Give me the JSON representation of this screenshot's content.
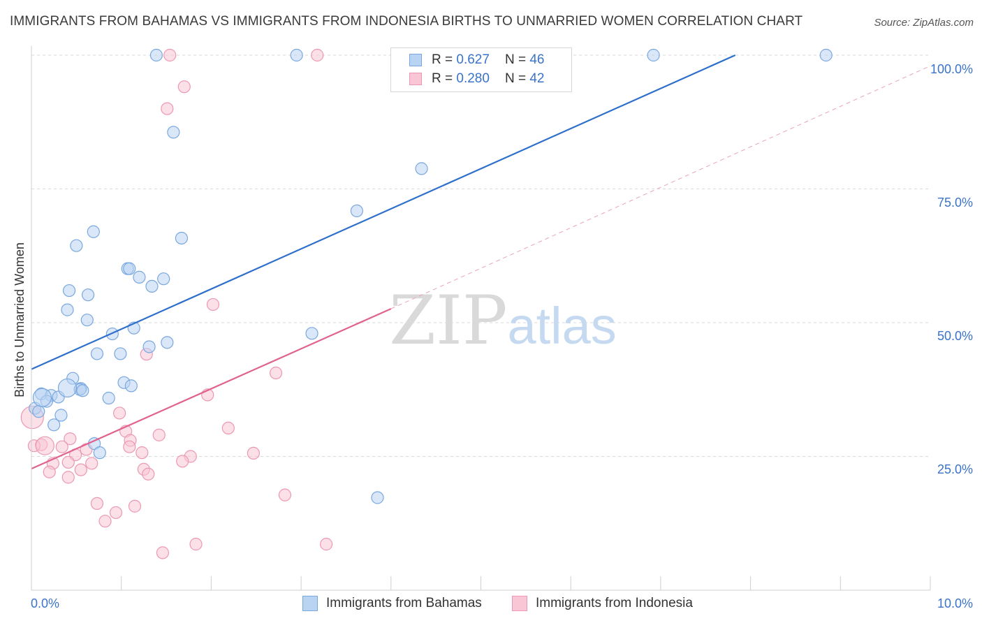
{
  "title": "IMMIGRANTS FROM BAHAMAS VS IMMIGRANTS FROM INDONESIA BIRTHS TO UNMARRIED WOMEN CORRELATION CHART",
  "source": "Source: ZipAtlas.com",
  "legend": {
    "rows": [
      {
        "r_label": "R =",
        "r_value": "0.627",
        "n_label": "N =",
        "n_value": "46"
      },
      {
        "r_label": "R =",
        "r_value": "0.280",
        "n_label": "N =",
        "n_value": "42"
      }
    ]
  },
  "colors": {
    "blue_fill": "#b9d3f2",
    "blue_stroke": "#7aa8de",
    "blue_line": "#2e6fcb",
    "pink_fill": "#f8c6d5",
    "pink_stroke": "#ec98b3",
    "pink_line": "#e0638f",
    "axis_label": "#3a73c9",
    "grid": "#d9d9d9"
  },
  "chart_data": {
    "type": "scatter",
    "title": "IMMIGRANTS FROM BAHAMAS VS IMMIGRANTS FROM INDONESIA BIRTHS TO UNMARRIED WOMEN CORRELATION CHART",
    "xlabel": "",
    "ylabel": "Births to Unmarried Women",
    "xlim": [
      0,
      10
    ],
    "ylim": [
      0,
      100
    ],
    "x_tick_labels": [
      "0.0%",
      "10.0%"
    ],
    "y_tick_labels": [
      "25.0%",
      "50.0%",
      "75.0%",
      "100.0%"
    ],
    "y_ticks": [
      25,
      50,
      75,
      100
    ],
    "legend_position": "top-center",
    "watermark": "ZIPatlas",
    "series": [
      {
        "name": "Immigrants from Bahamas",
        "color": "blue",
        "points": [
          [
            1.39,
            100
          ],
          [
            2.95,
            100
          ],
          [
            6.92,
            100
          ],
          [
            8.84,
            100
          ],
          [
            1.58,
            85.6
          ],
          [
            4.34,
            78.8
          ],
          [
            3.62,
            70.9
          ],
          [
            0.69,
            67.0
          ],
          [
            0.5,
            64.4
          ],
          [
            1.67,
            65.8
          ],
          [
            1.07,
            60.1
          ],
          [
            1.09,
            60.1
          ],
          [
            1.2,
            58.5
          ],
          [
            1.47,
            58.2
          ],
          [
            1.34,
            56.8
          ],
          [
            0.42,
            56.0
          ],
          [
            0.63,
            55.2
          ],
          [
            0.4,
            52.4
          ],
          [
            0.62,
            50.5
          ],
          [
            0.9,
            47.9
          ],
          [
            1.14,
            49.0
          ],
          [
            3.12,
            48.0
          ],
          [
            1.51,
            46.3
          ],
          [
            1.31,
            45.5
          ],
          [
            0.73,
            44.2
          ],
          [
            0.99,
            44.2
          ],
          [
            0.46,
            39.6
          ],
          [
            1.03,
            38.8
          ],
          [
            1.11,
            38.2
          ],
          [
            0.55,
            37.7
          ],
          [
            0.54,
            37.5
          ],
          [
            0.57,
            37.3
          ],
          [
            0.11,
            36.7
          ],
          [
            0.22,
            36.4
          ],
          [
            0.3,
            36.1
          ],
          [
            0.86,
            35.9
          ],
          [
            0.17,
            35.3
          ],
          [
            0.04,
            34.0
          ],
          [
            0.08,
            33.4
          ],
          [
            0.33,
            32.7
          ],
          [
            0.25,
            30.9
          ],
          [
            0.7,
            27.4
          ],
          [
            0.76,
            25.7
          ],
          [
            3.85,
            17.3
          ],
          [
            0.12,
            36.0
          ],
          [
            0.4,
            37.8
          ]
        ],
        "trendline": {
          "x": [
            0.0,
            7.83
          ],
          "y": [
            41.3,
            100.0
          ]
        }
      },
      {
        "name": "Immigrants from Indonesia",
        "color": "pink",
        "points": [
          [
            1.54,
            100
          ],
          [
            3.18,
            100
          ],
          [
            1.7,
            94.1
          ],
          [
            1.51,
            90.0
          ],
          [
            2.02,
            53.4
          ],
          [
            1.28,
            44.1
          ],
          [
            2.72,
            40.6
          ],
          [
            1.96,
            36.5
          ],
          [
            0.98,
            33.1
          ],
          [
            2.19,
            30.3
          ],
          [
            1.05,
            29.7
          ],
          [
            1.42,
            29.0
          ],
          [
            0.43,
            28.3
          ],
          [
            1.1,
            28.0
          ],
          [
            0.11,
            27.2
          ],
          [
            0.03,
            27.0
          ],
          [
            0.34,
            26.8
          ],
          [
            1.09,
            26.8
          ],
          [
            0.61,
            26.3
          ],
          [
            1.23,
            25.7
          ],
          [
            2.47,
            25.6
          ],
          [
            1.77,
            25.0
          ],
          [
            0.49,
            25.3
          ],
          [
            1.68,
            24.1
          ],
          [
            0.24,
            23.7
          ],
          [
            0.41,
            23.9
          ],
          [
            0.67,
            23.7
          ],
          [
            0.55,
            22.5
          ],
          [
            1.25,
            22.6
          ],
          [
            0.2,
            22.1
          ],
          [
            1.3,
            21.7
          ],
          [
            0.41,
            21.1
          ],
          [
            2.82,
            17.8
          ],
          [
            0.73,
            16.2
          ],
          [
            1.15,
            15.7
          ],
          [
            0.94,
            14.5
          ],
          [
            0.82,
            12.9
          ],
          [
            1.46,
            7.0
          ],
          [
            1.83,
            8.6
          ],
          [
            3.28,
            8.6
          ],
          [
            0.01,
            32.3
          ],
          [
            0.15,
            27.0
          ]
        ],
        "trendline": {
          "x": [
            0.0,
            4.0
          ],
          "y": [
            22.7,
            52.6
          ]
        },
        "trendline_extension": {
          "x": [
            4.0,
            10.0
          ],
          "y": [
            52.6,
            98.0
          ]
        }
      }
    ]
  },
  "bottom_legend": {
    "items": [
      {
        "label": "Immigrants from Bahamas"
      },
      {
        "label": "Immigrants from Indonesia"
      }
    ]
  }
}
